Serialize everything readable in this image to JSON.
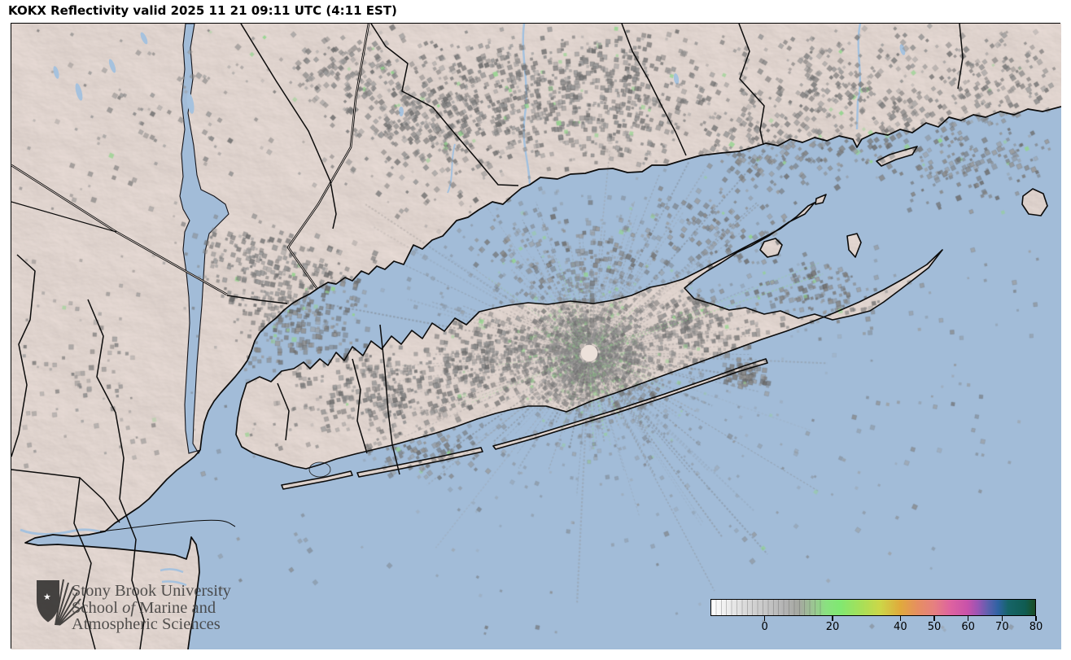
{
  "title": "KOKX Reflectivity valid 2025 11 21 09:11 UTC (4:11 EST)",
  "logo": {
    "line1": "Stony Brook University",
    "line2_pre": "School ",
    "line2_italic": "of",
    "line2_post": " Marine and",
    "line3": "Atmospheric Sciences"
  },
  "colorbar": {
    "min": -16,
    "max": 80,
    "ticks": [
      {
        "label": "0",
        "value": 0
      },
      {
        "label": "20",
        "value": 20
      },
      {
        "label": "40",
        "value": 40
      },
      {
        "label": "50",
        "value": 50
      },
      {
        "label": "60",
        "value": 60
      },
      {
        "label": "70",
        "value": 70
      },
      {
        "label": "80",
        "value": 80
      }
    ],
    "stops": [
      {
        "v": -16,
        "c": "#ffffff"
      },
      {
        "v": -10,
        "c": "#e9e9e9"
      },
      {
        "v": -4,
        "c": "#d4d4d4"
      },
      {
        "v": 0,
        "c": "#c7c7c7"
      },
      {
        "v": 6,
        "c": "#b2b2b2"
      },
      {
        "v": 10,
        "c": "#a5a8a0"
      },
      {
        "v": 14,
        "c": "#9cc493"
      },
      {
        "v": 18,
        "c": "#8ae180"
      },
      {
        "v": 22,
        "c": "#80e872"
      },
      {
        "v": 28,
        "c": "#a4e05a"
      },
      {
        "v": 34,
        "c": "#ccd748"
      },
      {
        "v": 40,
        "c": "#e0aa3c"
      },
      {
        "v": 45,
        "c": "#e68f60"
      },
      {
        "v": 50,
        "c": "#e68080"
      },
      {
        "v": 55,
        "c": "#de62a0"
      },
      {
        "v": 60,
        "c": "#c852aa"
      },
      {
        "v": 63,
        "c": "#9a55b4"
      },
      {
        "v": 66,
        "c": "#5e60ae"
      },
      {
        "v": 69,
        "c": "#2f62a2"
      },
      {
        "v": 72,
        "c": "#166468"
      },
      {
        "v": 77,
        "c": "#0f5c52"
      },
      {
        "v": 79,
        "c": "#175432"
      },
      {
        "v": 80,
        "c": "#1b4a26"
      }
    ]
  },
  "map": {
    "water_color": "#a2bcd8",
    "land_color": "#f2e5df",
    "river_color": "#a6c2de",
    "coast_color": "#0b0b0b",
    "clutter_gray": "#8a8a8a",
    "clutter_green": "#92d48c",
    "radar_site": "KOKX"
  }
}
